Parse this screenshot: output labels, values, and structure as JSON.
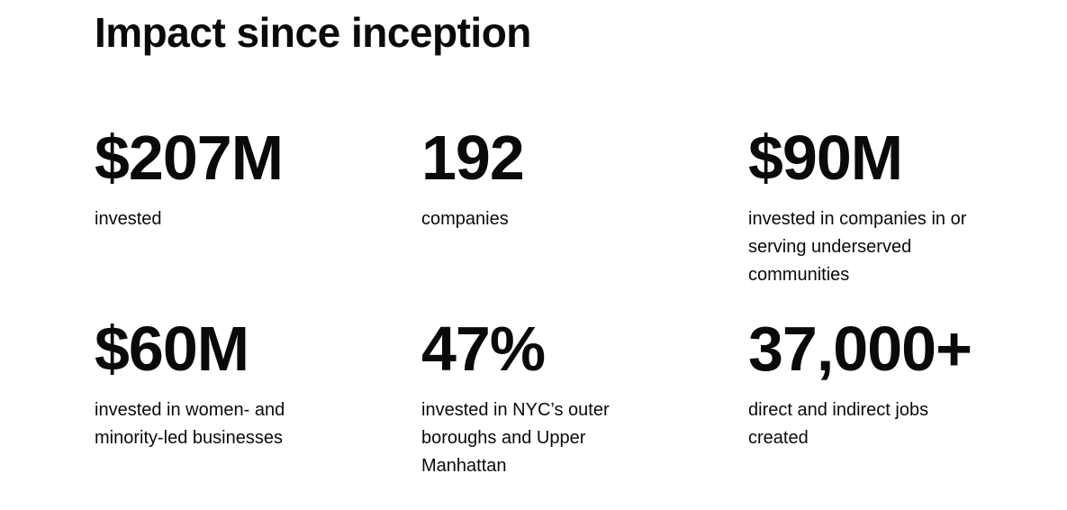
{
  "header": {
    "title": "Impact since inception"
  },
  "stats": [
    {
      "value": "$207M",
      "label": "invested"
    },
    {
      "value": "192",
      "label": "companies"
    },
    {
      "value": "$90M",
      "label": "invested in companies in or serving underserved communities"
    },
    {
      "value": "$60M",
      "label": "invested in women- and minority-led businesses"
    },
    {
      "value": "47%",
      "label": "invested in NYC’s outer boroughs and Upper Manhattan"
    },
    {
      "value": "37,000+",
      "label": "direct and indirect jobs created"
    }
  ]
}
